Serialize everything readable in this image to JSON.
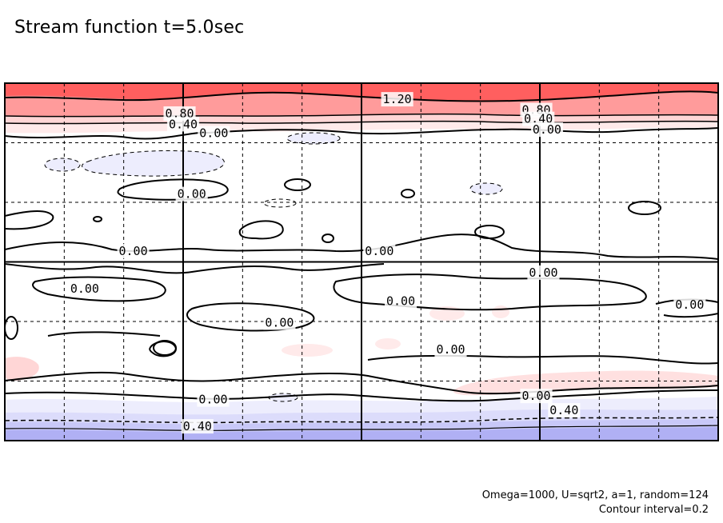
{
  "figure": {
    "title": "Stream function t=5.0sec",
    "params_text": "Omega=1000, U=sqrt2, a=1, random=124",
    "interval_text": "Contour interval=0.2"
  },
  "colors": {
    "positive_strong": "#ff5f5f",
    "positive_mid": "#ff9b9b",
    "positive_weak": "#ffd6d6",
    "positive_faint": "#ffeaea",
    "negative_faint": "#ededfd",
    "negative_weak": "#dcdcfb",
    "negative_mid": "#c8c8f8",
    "negative_strong": "#b0b0f4",
    "contour": "#000000",
    "grid": "#000000"
  },
  "chart_data": {
    "type": "heatmap",
    "field": "stream function",
    "contour_interval": 0.2,
    "grid": true,
    "major_grid": {
      "x_divisions": 4,
      "y_divisions": 2
    },
    "minor_grid": {
      "x_divisions": 12,
      "y_divisions": 6
    },
    "contour_labels": [
      {
        "text": "1.20",
        "fx": 0.55,
        "fy": 0.045
      },
      {
        "text": "0.80",
        "fx": 0.245,
        "fy": 0.085
      },
      {
        "text": "0.40",
        "fx": 0.25,
        "fy": 0.115
      },
      {
        "text": "0.80",
        "fx": 0.745,
        "fy": 0.075
      },
      {
        "text": "0.40",
        "fx": 0.748,
        "fy": 0.1
      },
      {
        "text": "0.00",
        "fx": 0.293,
        "fy": 0.14
      },
      {
        "text": "0.00",
        "fx": 0.76,
        "fy": 0.13
      },
      {
        "text": "0.00",
        "fx": 0.262,
        "fy": 0.31
      },
      {
        "text": "0.00",
        "fx": 0.18,
        "fy": 0.47
      },
      {
        "text": "0.00",
        "fx": 0.525,
        "fy": 0.47
      },
      {
        "text": "0.00",
        "fx": 0.755,
        "fy": 0.53
      },
      {
        "text": "0.00",
        "fx": 0.112,
        "fy": 0.575
      },
      {
        "text": "0.00",
        "fx": 0.555,
        "fy": 0.61
      },
      {
        "text": "0.00",
        "fx": 0.96,
        "fy": 0.62
      },
      {
        "text": "0.00",
        "fx": 0.385,
        "fy": 0.67
      },
      {
        "text": "0.00",
        "fx": 0.625,
        "fy": 0.745
      },
      {
        "text": "0.00",
        "fx": 0.292,
        "fy": 0.885
      },
      {
        "text": "0.00",
        "fx": 0.745,
        "fy": 0.875
      },
      {
        "text": "0.40",
        "fx": 0.784,
        "fy": 0.915
      },
      {
        "text": "0.40",
        "fx": 0.27,
        "fy": 0.96
      }
    ]
  }
}
